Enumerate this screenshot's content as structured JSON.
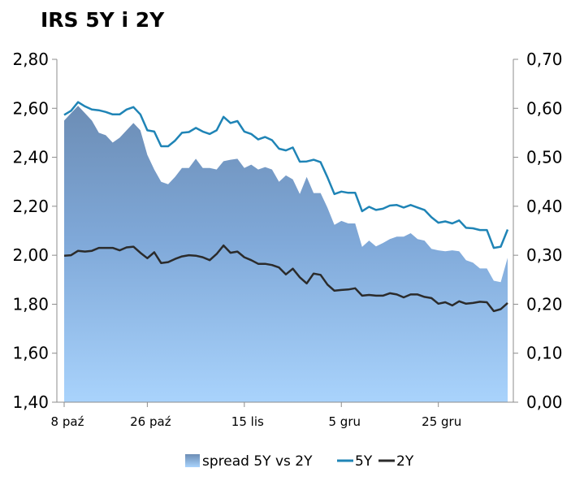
{
  "chart_data": {
    "type": "line",
    "title": "IRS 5Y i 2Y",
    "y_left": {
      "min": 1.4,
      "max": 2.8,
      "step": 0.2,
      "ticks": [
        "1,40",
        "1,60",
        "1,80",
        "2,00",
        "2,20",
        "2,40",
        "2,60",
        "2,80"
      ]
    },
    "y_right": {
      "min": 0.0,
      "max": 0.7,
      "step": 0.1,
      "ticks": [
        "0,00",
        "0,10",
        "0,20",
        "0,30",
        "0,40",
        "0,50",
        "0,60",
        "0,70"
      ]
    },
    "x_tick_labels": [
      {
        "label": "8 paź",
        "index": 0
      },
      {
        "label": "26 paź",
        "index": 12
      },
      {
        "label": "15 lis",
        "index": 26
      },
      {
        "label": "5 gru",
        "index": 40
      },
      {
        "label": "25 gru",
        "index": 54
      }
    ],
    "grid": false,
    "legend_position": "bottom",
    "series": [
      {
        "name": "spread 5Y vs 2Y",
        "type": "area",
        "axis": "right",
        "color": "#6f95c2",
        "values": [
          0.575,
          0.59,
          0.605,
          0.59,
          0.575,
          0.55,
          0.545,
          0.53,
          0.54,
          0.555,
          0.57,
          0.555,
          0.505,
          0.475,
          0.45,
          0.445,
          0.46,
          0.478,
          0.478,
          0.497,
          0.478,
          0.478,
          0.475,
          0.492,
          0.495,
          0.497,
          0.478,
          0.485,
          0.475,
          0.48,
          0.475,
          0.45,
          0.463,
          0.455,
          0.425,
          0.46,
          0.427,
          0.427,
          0.397,
          0.362,
          0.37,
          0.365,
          0.365,
          0.317,
          0.33,
          0.318,
          0.325,
          0.333,
          0.338,
          0.338,
          0.345,
          0.333,
          0.33,
          0.313,
          0.31,
          0.308,
          0.31,
          0.308,
          0.29,
          0.285,
          0.273,
          0.273,
          0.248,
          0.245,
          0.295
        ]
      },
      {
        "name": "5Y",
        "type": "line",
        "axis": "left",
        "color": "#1f84b6",
        "values": [
          2.573,
          2.59,
          2.625,
          2.608,
          2.595,
          2.592,
          2.585,
          2.575,
          2.575,
          2.595,
          2.605,
          2.575,
          2.51,
          2.505,
          2.445,
          2.445,
          2.468,
          2.5,
          2.503,
          2.52,
          2.505,
          2.495,
          2.51,
          2.565,
          2.54,
          2.548,
          2.505,
          2.495,
          2.473,
          2.483,
          2.47,
          2.435,
          2.428,
          2.44,
          2.382,
          2.383,
          2.39,
          2.38,
          2.318,
          2.25,
          2.26,
          2.255,
          2.255,
          2.18,
          2.198,
          2.185,
          2.19,
          2.203,
          2.205,
          2.195,
          2.205,
          2.195,
          2.185,
          2.155,
          2.133,
          2.138,
          2.13,
          2.142,
          2.112,
          2.11,
          2.103,
          2.103,
          2.03,
          2.035,
          2.105
        ]
      },
      {
        "name": "2Y",
        "type": "line",
        "axis": "left",
        "color": "#2b2b2b",
        "values": [
          1.998,
          2.0,
          2.018,
          2.015,
          2.018,
          2.03,
          2.03,
          2.03,
          2.02,
          2.032,
          2.035,
          2.01,
          1.988,
          2.012,
          1.968,
          1.972,
          1.985,
          1.995,
          2.0,
          1.998,
          1.992,
          1.98,
          2.005,
          2.04,
          2.01,
          2.015,
          1.992,
          1.98,
          1.965,
          1.965,
          1.96,
          1.95,
          1.922,
          1.945,
          1.91,
          1.885,
          1.925,
          1.92,
          1.88,
          1.855,
          1.858,
          1.86,
          1.865,
          1.835,
          1.838,
          1.835,
          1.835,
          1.845,
          1.84,
          1.828,
          1.84,
          1.84,
          1.83,
          1.825,
          1.802,
          1.808,
          1.795,
          1.812,
          1.802,
          1.805,
          1.81,
          1.808,
          1.772,
          1.78,
          1.805
        ]
      }
    ]
  }
}
